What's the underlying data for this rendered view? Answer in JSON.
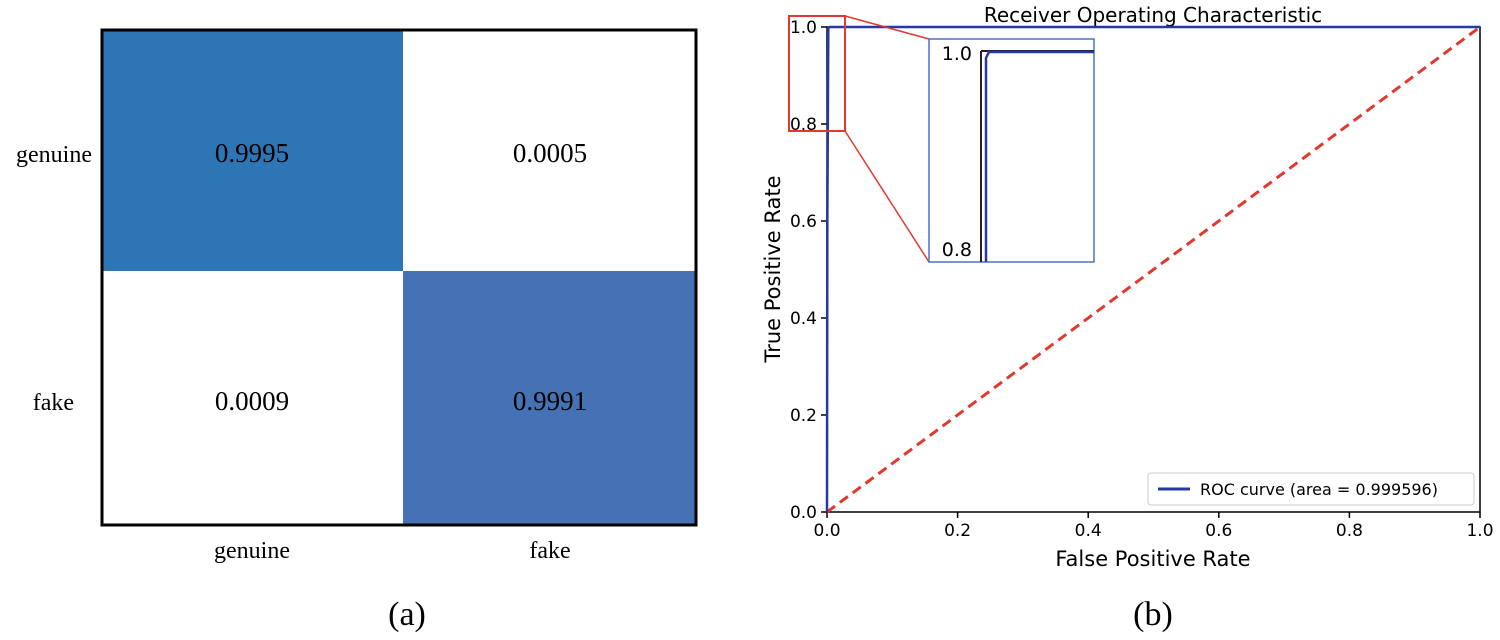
{
  "chart_data": [
    {
      "type": "heatmap",
      "panel_label": "(a)",
      "rows": [
        "genuine",
        "fake"
      ],
      "columns": [
        "genuine",
        "fake"
      ],
      "values": [
        [
          "0.9995",
          "0.0005"
        ],
        [
          "0.0009",
          "0.9991"
        ]
      ],
      "cell_colors": [
        [
          "#2e75b6",
          "#ffffff"
        ],
        [
          "#ffffff",
          "#4472b4"
        ]
      ]
    },
    {
      "type": "line",
      "panel_label": "(b)",
      "title": "Receiver Operating Characteristic",
      "xlabel": "False Positive Rate",
      "ylabel": "True Positive Rate",
      "xlim": [
        0,
        1
      ],
      "ylim": [
        0,
        1
      ],
      "xticks": [
        "0.0",
        "0.2",
        "0.4",
        "0.6",
        "0.8",
        "1.0"
      ],
      "yticks": [
        "0.0",
        "0.2",
        "0.4",
        "0.6",
        "0.8",
        "1.0"
      ],
      "series": [
        {
          "name": "ROC curve (area = 0.999596)",
          "color": "#2637a6",
          "x": [
            0,
            0.0005,
            0.002,
            0.004,
            1
          ],
          "y": [
            0,
            0.6,
            0.998,
            1,
            1
          ]
        }
      ],
      "diagonal": {
        "x": [
          0,
          1
        ],
        "y": [
          0,
          1
        ],
        "color": "#e03a30"
      },
      "legend_position": "bottom-right",
      "inset": {
        "ylim": [
          0.78,
          1.02
        ],
        "yticks": [
          "1.0",
          "0.8"
        ],
        "curve_color": "#2637a6",
        "axis_line_color": "#222222",
        "border_color": "#4a72c4",
        "zoom_region_color": "#e03a30"
      }
    }
  ]
}
